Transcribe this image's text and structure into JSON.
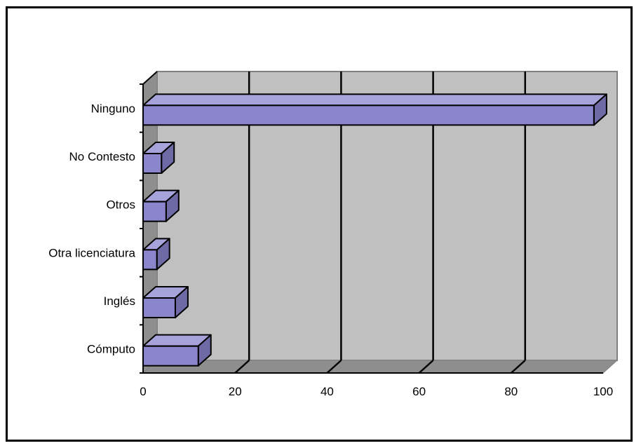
{
  "chart_data": {
    "type": "bar",
    "orientation": "horizontal",
    "three_d": true,
    "categories": [
      "Cómputo",
      "Inglés",
      "Otra licenciatura",
      "Otros",
      "No Contesto",
      "Ninguno"
    ],
    "values": [
      12,
      7,
      3,
      5,
      4,
      98
    ],
    "xlim": [
      0,
      100
    ],
    "x_ticks": [
      "0",
      "20",
      "40",
      "60",
      "80",
      "100"
    ],
    "grid": true,
    "legend": "none",
    "colors": {
      "bar_face": "#8B86CB",
      "bar_top": "#A6A2DA",
      "bar_side": "#6E6AA6",
      "plot_back": "#C0C0C0",
      "plot_floor": "#8E8E8E",
      "gridline": "#000000"
    }
  }
}
